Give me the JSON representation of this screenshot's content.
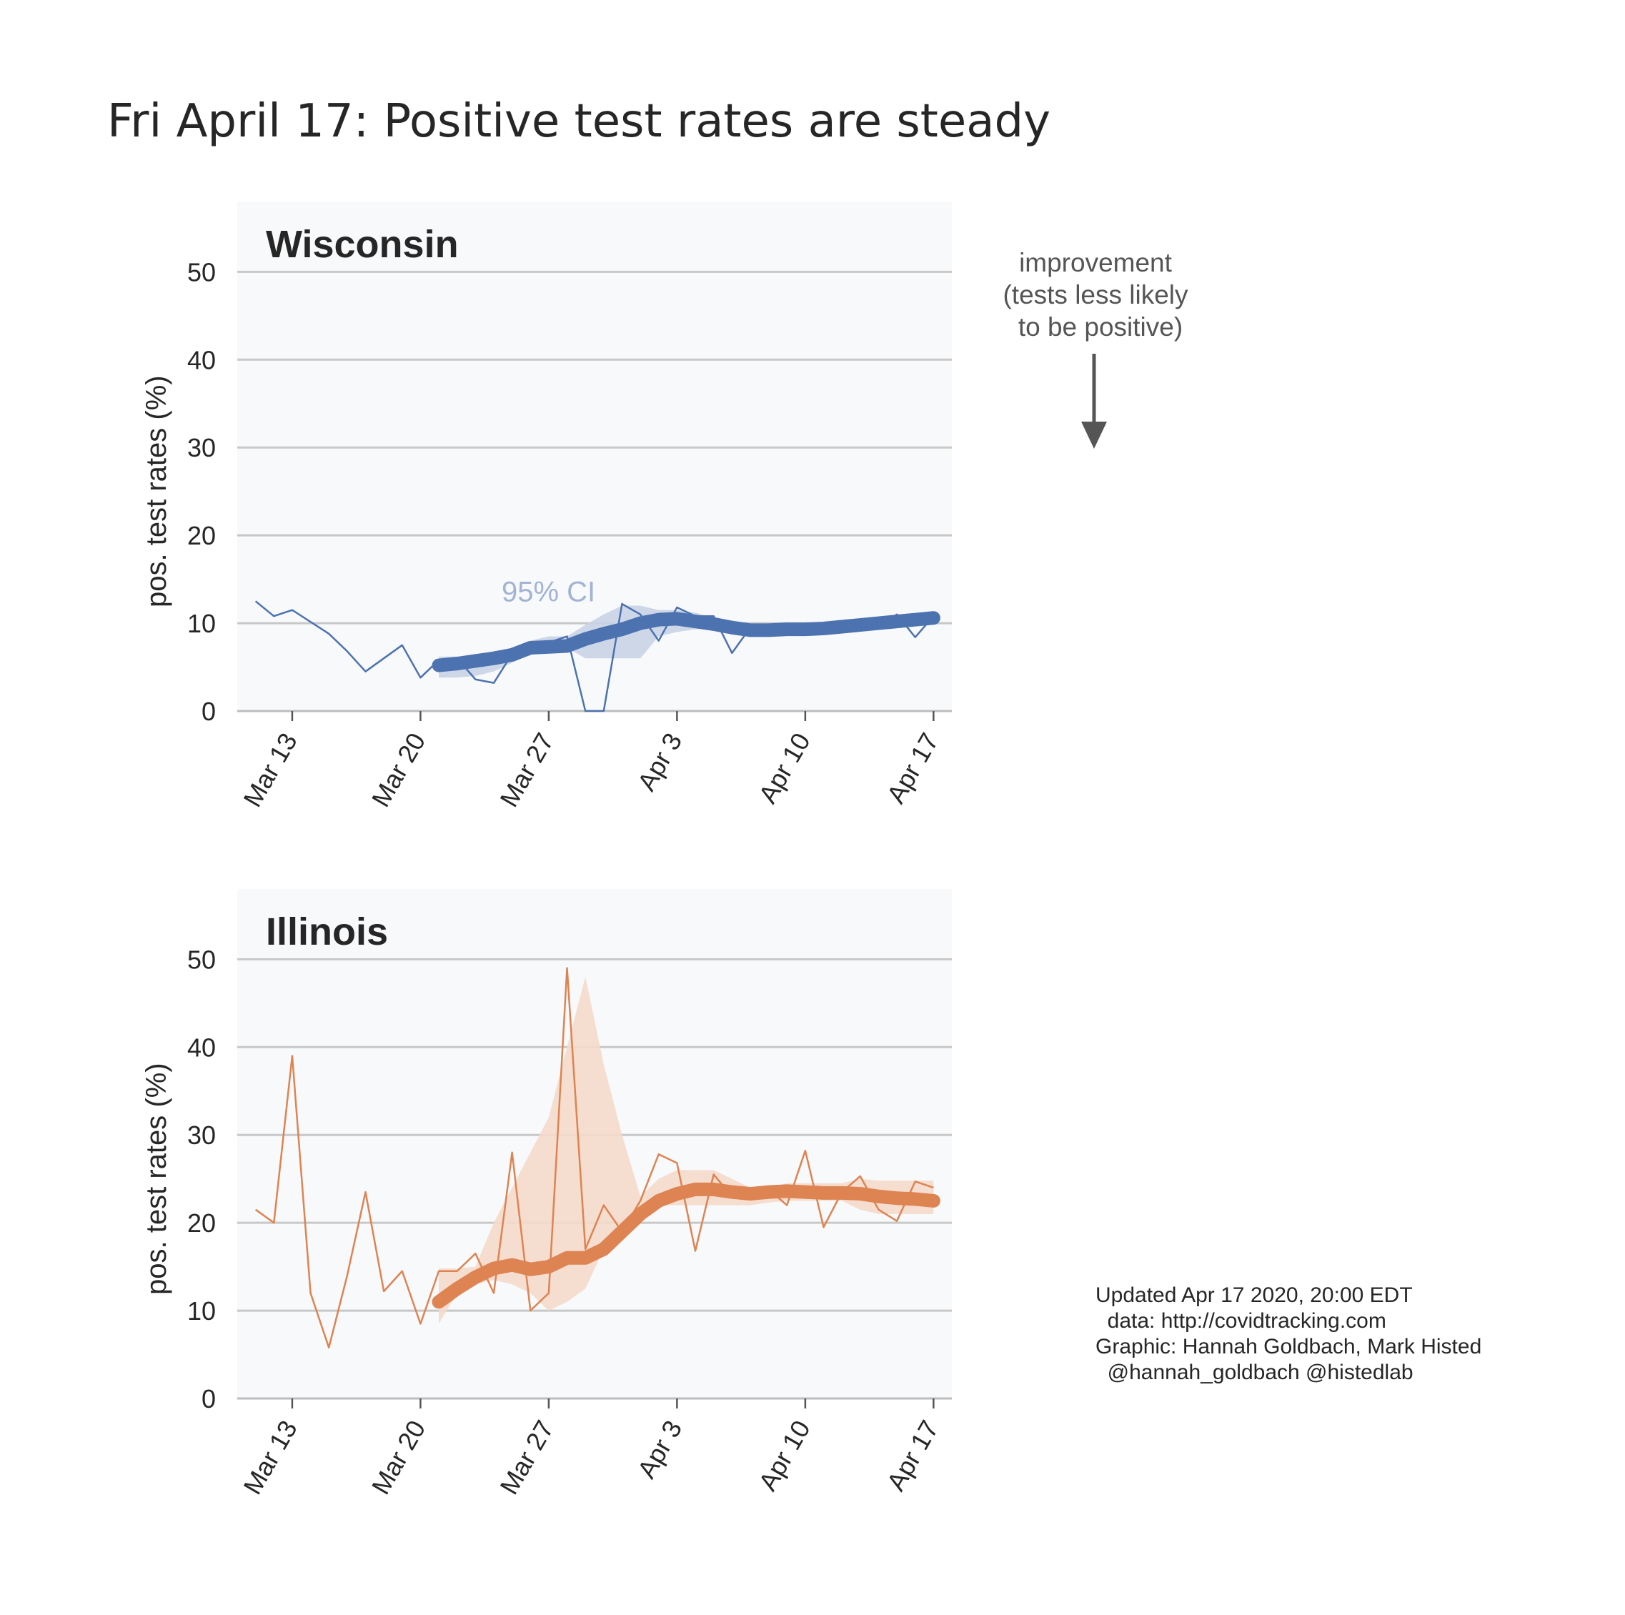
{
  "title": "Fri April 17: Positive test rates are steady",
  "annotation": {
    "lines": [
      "improvement",
      "(tests less likely",
      "to be positive)"
    ],
    "color": "#555555"
  },
  "credits": {
    "lines": [
      "Updated Apr 17 2020, 20:00 EDT",
      "  data: http://covidtracking.com",
      "Graphic: Hannah Goldbach, Mark Histed",
      "  @hannah_goldbach @histedlab"
    ]
  },
  "chart_data": [
    {
      "type": "line",
      "title": "Wisconsin",
      "ylabel": "pos. test rates (%)",
      "xlabel": "",
      "x_type": "date",
      "xlim": [
        "2020-03-10",
        "2020-04-18"
      ],
      "ylim": [
        0,
        58
      ],
      "yticks": [
        0,
        10,
        20,
        30,
        40,
        50
      ],
      "xticks": [
        "2020-03-13",
        "2020-03-20",
        "2020-03-27",
        "2020-04-03",
        "2020-04-10",
        "2020-04-17"
      ],
      "xtick_labels": [
        "Mar 13",
        "Mar 20",
        "Mar 27",
        "Apr 3",
        "Apr 10",
        "Apr 17"
      ],
      "grid": true,
      "ci_label": "95% CI",
      "color": "#4c72b0",
      "ci_color": "#c9d3e6",
      "ci_label_color": "#a2b3d3",
      "daily": {
        "x": [
          "2020-03-11",
          "2020-03-12",
          "2020-03-13",
          "2020-03-15",
          "2020-03-16",
          "2020-03-17",
          "2020-03-19",
          "2020-03-20",
          "2020-03-21",
          "2020-03-22",
          "2020-03-23",
          "2020-03-24",
          "2020-03-25",
          "2020-03-26",
          "2020-03-27",
          "2020-03-28",
          "2020-03-29",
          "2020-03-30",
          "2020-03-31",
          "2020-04-01",
          "2020-04-02",
          "2020-04-03",
          "2020-04-04",
          "2020-04-05",
          "2020-04-06",
          "2020-04-07",
          "2020-04-08",
          "2020-04-09",
          "2020-04-10",
          "2020-04-11",
          "2020-04-12",
          "2020-04-13",
          "2020-04-14",
          "2020-04-15",
          "2020-04-16",
          "2020-04-17"
        ],
        "y": [
          12.5,
          10.8,
          11.5,
          8.8,
          6.8,
          4.5,
          7.5,
          3.8,
          5.8,
          6.0,
          3.6,
          3.2,
          6.5,
          6.6,
          7.8,
          8.5,
          0.0,
          0.0,
          12.2,
          11.0,
          8.0,
          11.8,
          10.8,
          10.8,
          6.6,
          9.5,
          9.2,
          8.9,
          9.3,
          9.2,
          9.3,
          9.5,
          9.6,
          11.0,
          8.4,
          10.8
        ]
      },
      "smoothed": {
        "x": [
          "2020-03-21",
          "2020-03-22",
          "2020-03-23",
          "2020-03-24",
          "2020-03-25",
          "2020-03-26",
          "2020-03-27",
          "2020-03-28",
          "2020-03-29",
          "2020-03-30",
          "2020-03-31",
          "2020-04-01",
          "2020-04-02",
          "2020-04-03",
          "2020-04-04",
          "2020-04-05",
          "2020-04-06",
          "2020-04-07",
          "2020-04-08",
          "2020-04-09",
          "2020-04-10",
          "2020-04-11",
          "2020-04-12",
          "2020-04-13",
          "2020-04-14",
          "2020-04-15",
          "2020-04-16",
          "2020-04-17"
        ],
        "y": [
          5.2,
          5.4,
          5.7,
          6.0,
          6.4,
          7.2,
          7.3,
          7.4,
          8.2,
          8.8,
          9.3,
          10.0,
          10.4,
          10.5,
          10.2,
          9.9,
          9.5,
          9.2,
          9.2,
          9.3,
          9.3,
          9.4,
          9.6,
          9.8,
          10.0,
          10.2,
          10.4,
          10.6
        ],
        "ci_low": [
          3.8,
          3.8,
          4.0,
          4.5,
          5.5,
          6.5,
          7.0,
          7.2,
          6.0,
          6.0,
          6.0,
          6.0,
          8.5,
          9.0,
          9.3,
          9.5,
          9.2,
          9.0,
          9.0,
          9.1,
          9.1,
          9.2,
          9.4,
          9.6,
          9.8,
          10.0,
          10.2,
          10.4
        ],
        "ci_high": [
          6.2,
          6.2,
          6.2,
          6.6,
          7.0,
          8.0,
          8.5,
          8.5,
          9.8,
          11.0,
          12.0,
          12.0,
          11.5,
          11.5,
          11.2,
          10.6,
          10.0,
          9.6,
          9.5,
          9.5,
          9.5,
          9.6,
          9.8,
          10.0,
          10.2,
          10.4,
          10.6,
          10.8
        ]
      }
    },
    {
      "type": "line",
      "title": "Illinois",
      "ylabel": "pos. test rates (%)",
      "xlabel": "",
      "x_type": "date",
      "xlim": [
        "2020-03-10",
        "2020-04-18"
      ],
      "ylim": [
        0,
        58
      ],
      "yticks": [
        0,
        10,
        20,
        30,
        40,
        50
      ],
      "xticks": [
        "2020-03-13",
        "2020-03-20",
        "2020-03-27",
        "2020-04-03",
        "2020-04-10",
        "2020-04-17"
      ],
      "xtick_labels": [
        "Mar 13",
        "Mar 20",
        "Mar 27",
        "Apr 3",
        "Apr 10",
        "Apr 17"
      ],
      "grid": true,
      "color": "#dd8452",
      "ci_color": "#f4d9ca",
      "daily": {
        "x": [
          "2020-03-11",
          "2020-03-12",
          "2020-03-13",
          "2020-03-14",
          "2020-03-15",
          "2020-03-16",
          "2020-03-17",
          "2020-03-18",
          "2020-03-19",
          "2020-03-20",
          "2020-03-21",
          "2020-03-22",
          "2020-03-23",
          "2020-03-24",
          "2020-03-25",
          "2020-03-26",
          "2020-03-27",
          "2020-03-28",
          "2020-03-29",
          "2020-03-30",
          "2020-03-31",
          "2020-04-01",
          "2020-04-02",
          "2020-04-03",
          "2020-04-04",
          "2020-04-05",
          "2020-04-06",
          "2020-04-07",
          "2020-04-08",
          "2020-04-09",
          "2020-04-10",
          "2020-04-11",
          "2020-04-12",
          "2020-04-13",
          "2020-04-14",
          "2020-04-15",
          "2020-04-16",
          "2020-04-17"
        ],
        "y": [
          21.5,
          20.0,
          39.0,
          12.0,
          5.8,
          14.0,
          23.5,
          12.2,
          14.5,
          8.5,
          14.5,
          14.5,
          16.5,
          12.0,
          28.0,
          10.0,
          12.0,
          49.0,
          17.0,
          22.0,
          19.0,
          22.5,
          27.8,
          26.8,
          16.8,
          25.5,
          23.0,
          23.5,
          23.8,
          22.0,
          28.2,
          19.5,
          23.5,
          25.3,
          21.5,
          20.2,
          24.7,
          24.0
        ]
      },
      "smoothed": {
        "x": [
          "2020-03-21",
          "2020-03-22",
          "2020-03-23",
          "2020-03-24",
          "2020-03-25",
          "2020-03-26",
          "2020-03-27",
          "2020-03-28",
          "2020-03-29",
          "2020-03-30",
          "2020-03-31",
          "2020-04-01",
          "2020-04-02",
          "2020-04-03",
          "2020-04-04",
          "2020-04-05",
          "2020-04-06",
          "2020-04-07",
          "2020-04-08",
          "2020-04-09",
          "2020-04-10",
          "2020-04-11",
          "2020-04-12",
          "2020-04-13",
          "2020-04-14",
          "2020-04-15",
          "2020-04-16",
          "2020-04-17"
        ],
        "y": [
          11.0,
          12.5,
          13.8,
          14.8,
          15.2,
          14.7,
          15.0,
          16.0,
          16.0,
          17.0,
          19.0,
          21.0,
          22.5,
          23.3,
          23.8,
          23.8,
          23.5,
          23.3,
          23.5,
          23.6,
          23.5,
          23.4,
          23.4,
          23.3,
          23.0,
          22.8,
          22.7,
          22.5
        ],
        "ci_low": [
          8.5,
          12.0,
          13.0,
          13.5,
          13.0,
          12.0,
          10.0,
          11.0,
          12.5,
          17.0,
          19.5,
          21.5,
          22.0,
          22.0,
          22.0,
          22.0,
          22.0,
          22.0,
          22.3,
          22.5,
          22.5,
          22.5,
          22.5,
          21.5,
          21.0,
          21.0,
          21.0,
          21.0
        ],
        "ci_high": [
          14.8,
          14.8,
          15.0,
          20.0,
          24.0,
          28.0,
          32.0,
          40.0,
          48.0,
          38.0,
          30.0,
          23.0,
          25.0,
          26.0,
          26.0,
          26.0,
          25.0,
          24.0,
          24.0,
          24.5,
          24.5,
          24.5,
          24.5,
          25.0,
          24.8,
          24.8,
          24.8,
          24.8
        ]
      }
    }
  ]
}
